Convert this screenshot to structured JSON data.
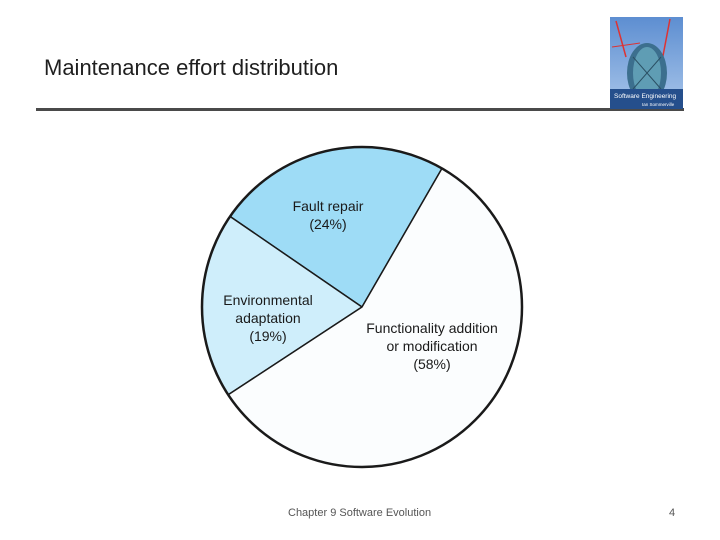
{
  "slide": {
    "title": "Maintenance effort distribution",
    "footer_chapter": "Chapter 9 Software Evolution",
    "page_number": "4"
  },
  "book_cover": {
    "title": "Software Engineering",
    "subtitle": "Ian Sommerville"
  },
  "colors": {
    "fault_repair": "#9edcf6",
    "environmental": "#cfeefb",
    "functionality": "#fbfdfe",
    "outline": "#1a1a1a",
    "rule": "#4a4a4a"
  },
  "chart_data": {
    "type": "pie",
    "title": "",
    "slices": [
      {
        "label_lines": [
          "Fault repair",
          "(24%)"
        ],
        "value": 24,
        "color": "#9edcf6"
      },
      {
        "label_lines": [
          "Environmental",
          "adaptation",
          "(19%)"
        ],
        "value": 19,
        "color": "#cfeefb"
      },
      {
        "label_lines": [
          "Functionality addition",
          "or modification",
          "(58%)"
        ],
        "value": 58,
        "color": "#fbfdfe"
      }
    ],
    "legend": "none"
  }
}
